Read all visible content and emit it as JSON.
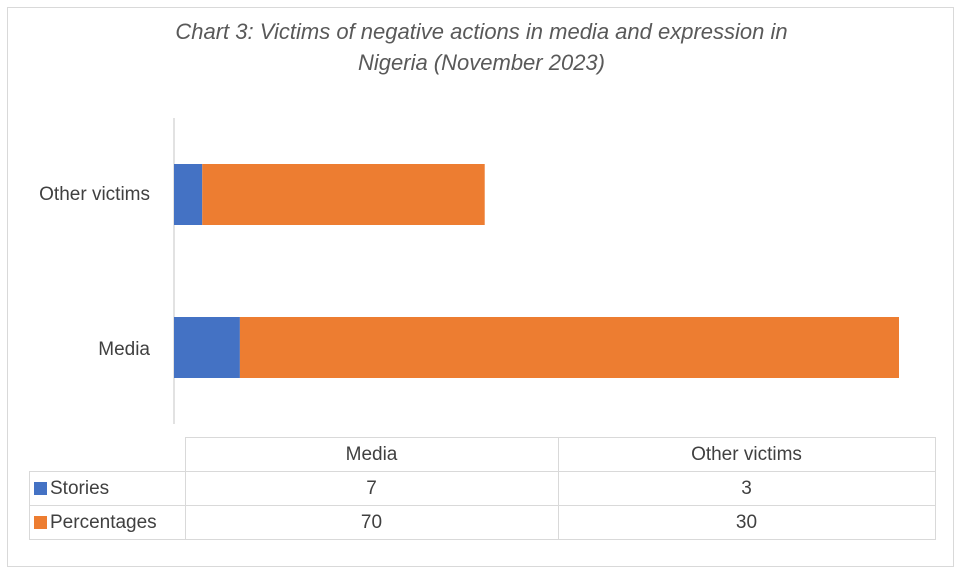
{
  "chart_data": {
    "type": "bar",
    "orientation": "horizontal",
    "stacked": true,
    "title": "Chart 3: Victims of negative actions in media and expression in Nigeria (November 2023)",
    "title_lines": [
      "Chart 3: Victims of negative actions in media and expression in",
      "Nigeria (November 2023)"
    ],
    "categories": [
      "Media",
      "Other victims"
    ],
    "series": [
      {
        "name": "Stories",
        "values": [
          7,
          3
        ],
        "color": "#4472c4"
      },
      {
        "name": "Percentages",
        "values": [
          70,
          30
        ],
        "color": "#ed7d31"
      }
    ],
    "xlim": [
      0,
      77
    ],
    "grid": false,
    "legend": "data table below chart"
  }
}
